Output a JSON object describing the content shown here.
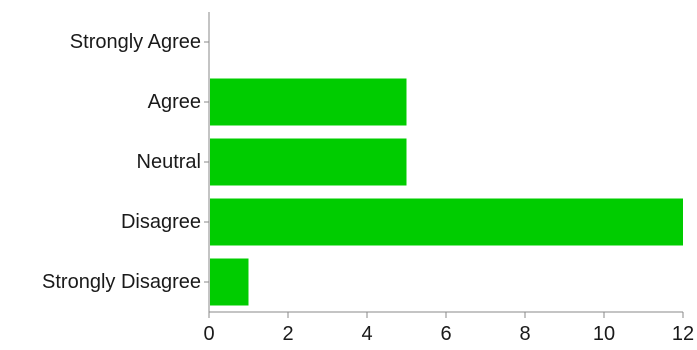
{
  "chart_data": {
    "type": "bar",
    "orientation": "horizontal",
    "categories": [
      "Strongly Agree",
      "Agree",
      "Neutral",
      "Disagree",
      "Strongly Disagree"
    ],
    "values": [
      0,
      5,
      5,
      12,
      1
    ],
    "xlim": [
      0,
      12
    ],
    "x_ticks": [
      0,
      2,
      4,
      6,
      8,
      10,
      12
    ],
    "title": "",
    "xlabel": "",
    "ylabel": "",
    "grid": false,
    "bar_color": "#00cc00"
  }
}
